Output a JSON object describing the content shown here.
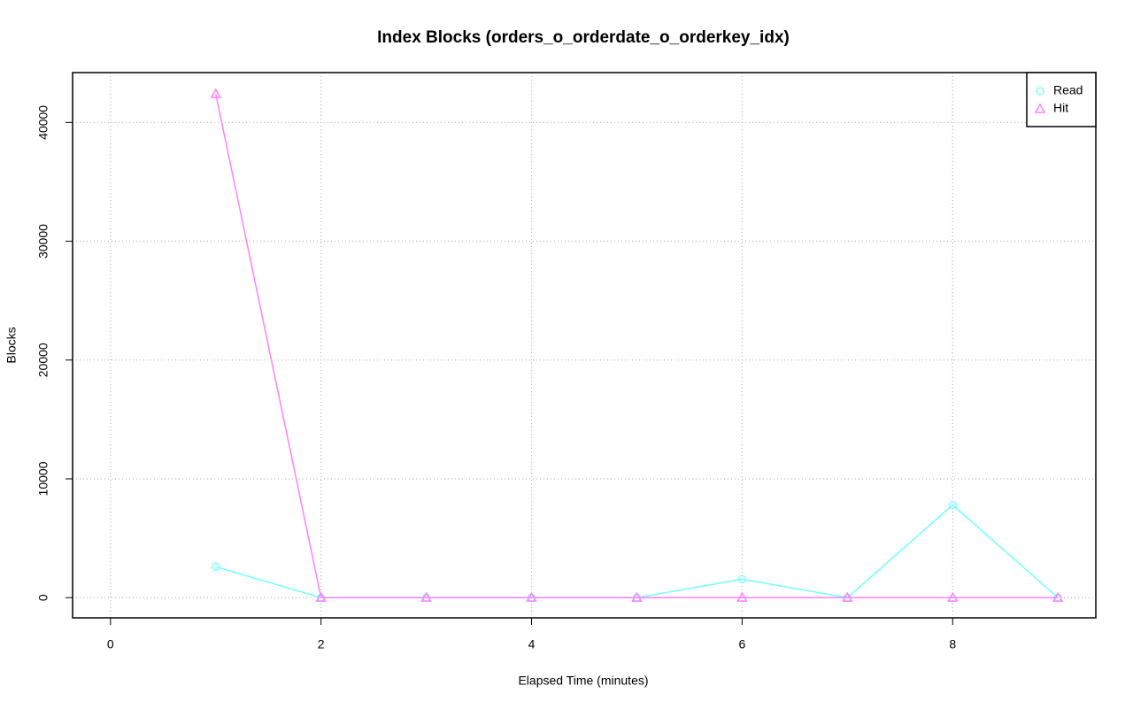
{
  "chart_data": {
    "type": "line",
    "title": "Index Blocks (orders_o_orderdate_o_orderkey_idx)",
    "x_label": "Elapsed Time (minutes)",
    "y_label": "Blocks",
    "x": [
      1,
      2,
      3,
      4,
      5,
      6,
      7,
      8,
      9
    ],
    "series": [
      {
        "name": "Read",
        "color": "#70ffff",
        "marker": "circle",
        "values": [
          2600,
          0,
          0,
          0,
          0,
          1550,
          0,
          7800,
          0
        ]
      },
      {
        "name": "Hit",
        "color": "#ff80ff",
        "marker": "triangle",
        "values": [
          42400,
          0,
          0,
          0,
          0,
          0,
          0,
          0,
          0
        ]
      }
    ],
    "xlim": [
      -0.36,
      9.36
    ],
    "xticks": [
      0,
      2,
      4,
      6,
      8
    ],
    "ylim": [
      -1700,
      44200
    ],
    "yticks": [
      0,
      10000,
      20000,
      30000,
      40000
    ],
    "grid": true,
    "legend": "top-right"
  }
}
